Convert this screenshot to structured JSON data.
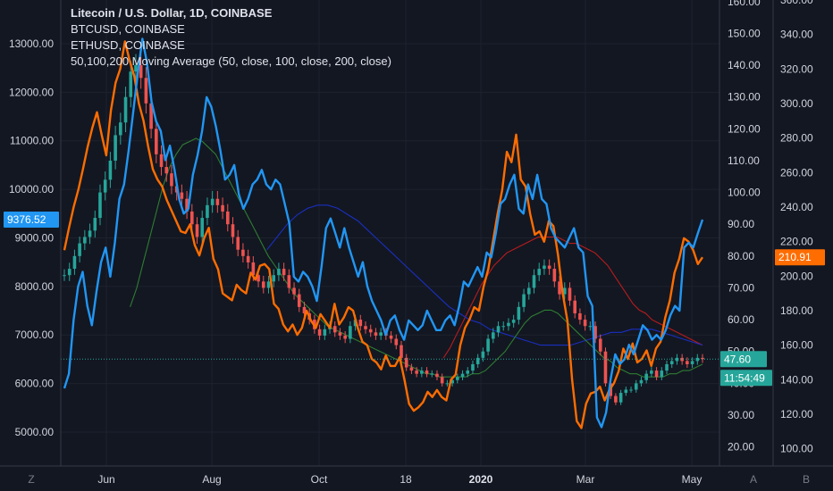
{
  "legend": {
    "main": "Litecoin / U.S. Dollar, 1D, COINBASE",
    "btc": "BTCUSD, COINBASE",
    "eth": "ETHUSD, COINBASE",
    "ma": "50,100,200 Moving Average (50, close, 100, close, 200, close)"
  },
  "colors": {
    "background": "#131722",
    "btc": "#2196f3",
    "eth": "#ff6d00",
    "ltc_up": "#26a69a",
    "ltc_down": "#ef5350",
    "ma50": "#2e7d32",
    "ma100": "#1a2fc0",
    "ma200": "#b71c1c",
    "price_line": "#26a69a"
  },
  "bottom_buttons": {
    "left": "Z",
    "a": "A",
    "b": "B"
  },
  "chart_data": {
    "type": "line",
    "x_ticks": [
      "Jun",
      "Aug",
      "Oct",
      "18",
      "2020",
      "Mar",
      "May"
    ],
    "x_tick_pos": [
      0.078,
      0.25,
      0.427,
      0.582,
      0.725,
      0.905,
      0.963
    ],
    "axes": {
      "btc_left": {
        "ticks": [
          5000,
          6000,
          7000,
          8000,
          9000,
          10000,
          11000,
          12000,
          13000
        ],
        "tick_labels": [
          "5000.00",
          "6000.00",
          "7000.00",
          "8000.00",
          "9000.00",
          "10000.00",
          "11000.00",
          "12000.00",
          "13000.00"
        ],
        "range": [
          4300,
          13900
        ]
      },
      "ltc_right": {
        "ticks": [
          20,
          30,
          40,
          50,
          60,
          70,
          80,
          90,
          100,
          110,
          120,
          130,
          140,
          150,
          160
        ],
        "tick_labels": [
          "20.00",
          "30.00",
          "40.00",
          "50.00",
          "60.00",
          "70.00",
          "80.00",
          "90.00",
          "100.00",
          "110.00",
          "120.00",
          "130.00",
          "140.00",
          "150.00",
          "160.00"
        ],
        "range": [
          14,
          160.5
        ]
      },
      "eth_right": {
        "ticks": [
          100,
          120,
          140,
          160,
          180,
          200,
          220,
          240,
          260,
          280,
          300,
          320,
          340,
          360
        ],
        "tick_labels": [
          "100.00",
          "120.00",
          "140.00",
          "160.00",
          "180.00",
          "200.00",
          "220.00",
          "240.00",
          "260.00",
          "280.00",
          "300.00",
          "320.00",
          "340.00",
          "360.00"
        ],
        "range": [
          90,
          360
        ]
      }
    },
    "series": [
      {
        "name": "BTCUSD, COINBASE",
        "axis": "btc_left",
        "values": [
          5900,
          6200,
          7300,
          8000,
          8300,
          7600,
          7200,
          7900,
          8500,
          8800,
          8200,
          8900,
          9800,
          10100,
          10800,
          11600,
          12400,
          13100,
          12600,
          11800,
          11400,
          11200,
          10600,
          10900,
          10400,
          9800,
          9500,
          9600,
          10300,
          10700,
          11200,
          11900,
          11700,
          11300,
          10800,
          10200,
          10300,
          10500,
          9900,
          9600,
          9800,
          10100,
          10200,
          10400,
          10100,
          10000,
          10200,
          10100,
          9700,
          9300,
          8200,
          8100,
          8300,
          8200,
          8000,
          7700,
          8400,
          9200,
          9400,
          9100,
          8800,
          9200,
          8800,
          8500,
          8200,
          8500,
          8000,
          7700,
          7500,
          7300,
          7000,
          7300,
          7400,
          7100,
          6900,
          7300,
          7200,
          7100,
          7200,
          7500,
          7300,
          7100,
          7100,
          7300,
          7400,
          7200,
          7600,
          8100,
          8000,
          8200,
          8400,
          8200,
          8700,
          8600,
          9100,
          9700,
          9800,
          10100,
          10300,
          9600,
          9500,
          10100,
          9800,
          10300,
          9800,
          9700,
          9200,
          9000,
          8900,
          8800,
          9000,
          9200,
          8800,
          8700,
          7800,
          7600,
          5300,
          5100,
          5400,
          6100,
          6600,
          6400,
          6500,
          6800,
          6600,
          6900,
          7200,
          7100,
          6900,
          7000,
          6900,
          7100,
          7400,
          7600,
          7500,
          8800,
          8900,
          8800,
          9100,
          9376.52
        ],
        "last_value_label": "9376.52"
      },
      {
        "name": "ETHUSD, COINBASE",
        "axis": "eth_right",
        "values": [
          215,
          228,
          240,
          250,
          262,
          275,
          286,
          295,
          282,
          270,
          296,
          312,
          320,
          336,
          325,
          316,
          300,
          290,
          275,
          262,
          256,
          252,
          244,
          238,
          232,
          226,
          225,
          230,
          218,
          212,
          222,
          228,
          210,
          204,
          190,
          188,
          186,
          195,
          192,
          190,
          202,
          198,
          206,
          207,
          204,
          184,
          181,
          172,
          168,
          172,
          166,
          170,
          180,
          174,
          170,
          178,
          174,
          170,
          184,
          172,
          176,
          182,
          180,
          170,
          162,
          160,
          152,
          150,
          146,
          154,
          148,
          148,
          153,
          140,
          126,
          122,
          124,
          127,
          133,
          130,
          134,
          130,
          128,
          140,
          143,
          160,
          170,
          175,
          182,
          180,
          194,
          204,
          220,
          236,
          250,
          272,
          266,
          282,
          256,
          252,
          236,
          224,
          226,
          220,
          232,
          229,
          212,
          190,
          174,
          140,
          116,
          112,
          126,
          132,
          133,
          136,
          128,
          134,
          138,
          145,
          158,
          152,
          161,
          150,
          152,
          157,
          148,
          158,
          162,
          176,
          186,
          202,
          210,
          222,
          220,
          215,
          207,
          210.91
        ],
        "last_value_label": "210.91"
      },
      {
        "name": "LTC daily close (candles)",
        "axis": "ltc_right",
        "values": [
          74,
          76,
          80,
          84,
          86,
          88,
          92,
          100,
          104,
          110,
          118,
          122,
          130,
          138,
          140,
          136,
          128,
          120,
          112,
          108,
          106,
          102,
          100,
          98,
          94,
          90,
          86,
          92,
          96,
          98,
          96,
          94,
          90,
          86,
          82,
          80,
          78,
          74,
          72,
          70,
          72,
          74,
          76,
          74,
          70,
          68,
          64,
          62,
          60,
          57,
          55,
          57,
          58,
          56,
          55,
          54,
          58,
          60,
          58,
          57,
          56,
          55,
          56,
          55,
          54,
          52,
          48,
          45,
          44,
          43,
          44,
          43,
          43,
          42,
          40,
          40,
          41,
          42,
          43,
          44,
          46,
          48,
          50,
          54,
          56,
          58,
          58,
          59,
          60,
          64,
          68,
          70,
          74,
          76,
          77,
          76,
          72,
          68,
          70,
          66,
          62,
          60,
          58,
          58,
          54,
          50,
          40,
          36,
          34,
          37,
          38,
          38,
          40,
          41,
          43,
          44,
          42,
          44,
          46,
          47,
          48,
          47,
          46,
          47,
          48,
          47.6
        ],
        "last_value_label": "47.60",
        "countdown_label": "11:54:49"
      },
      {
        "name": "MA 50",
        "axis": "ltc_right",
        "values": [
          null,
          null,
          null,
          null,
          null,
          null,
          null,
          null,
          null,
          null,
          64,
          70,
          78,
          86,
          94,
          102,
          108,
          112,
          115,
          116,
          117,
          116,
          114,
          112,
          108,
          104,
          100,
          96,
          92,
          88,
          84,
          80,
          77,
          74,
          71,
          68,
          66,
          64,
          62,
          60,
          58,
          57,
          56,
          55,
          54,
          53,
          52,
          51,
          50,
          49,
          48,
          47,
          46,
          45,
          44,
          43,
          43,
          42,
          42,
          42,
          42,
          42,
          43,
          43,
          44,
          46,
          48,
          50,
          53,
          56,
          59,
          61,
          62,
          63,
          63,
          62,
          60,
          58,
          56,
          54,
          52,
          50,
          48,
          47,
          45,
          44,
          43,
          43,
          42,
          42,
          42,
          42,
          43,
          43,
          44,
          44,
          45,
          46
        ]
      },
      {
        "name": "MA 100",
        "axis": "ltc_right",
        "values": [
          null,
          null,
          null,
          null,
          null,
          null,
          null,
          null,
          null,
          null,
          null,
          null,
          null,
          null,
          null,
          null,
          null,
          null,
          null,
          null,
          82,
          86,
          90,
          93,
          95,
          96,
          96,
          95,
          93,
          91,
          88,
          85,
          82,
          79,
          76,
          73,
          70,
          67,
          64,
          62,
          60,
          59,
          57,
          56,
          55,
          54,
          53,
          52,
          52,
          52,
          52,
          53,
          54,
          55,
          56,
          56,
          57,
          57,
          57,
          56,
          55,
          54,
          53,
          52
        ]
      },
      {
        "name": "MA 200",
        "axis": "ltc_right",
        "values": [
          null,
          null,
          null,
          null,
          null,
          null,
          null,
          null,
          null,
          null,
          null,
          null,
          null,
          null,
          null,
          null,
          null,
          null,
          null,
          null,
          null,
          null,
          null,
          null,
          null,
          null,
          null,
          null,
          null,
          null,
          null,
          null,
          null,
          null,
          null,
          null,
          null,
          null,
          null,
          null,
          null,
          null,
          null,
          null,
          null,
          null,
          null,
          null,
          null,
          null,
          null,
          null,
          null,
          null,
          null,
          null,
          null,
          null,
          null,
          null,
          48,
          51,
          55,
          59,
          63,
          67,
          71,
          74,
          77,
          79,
          81,
          82,
          83,
          84,
          85,
          86,
          86,
          86,
          86,
          85,
          84,
          84,
          83,
          82,
          81,
          79,
          77,
          74,
          71,
          68,
          65,
          63,
          62,
          60,
          59,
          58,
          57,
          56,
          55,
          54,
          53,
          52
        ]
      }
    ]
  }
}
